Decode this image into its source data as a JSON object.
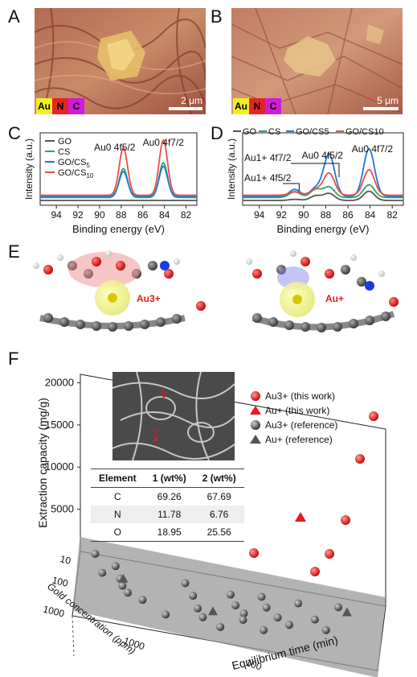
{
  "panels": {
    "A": "A",
    "B": "B",
    "C": "C",
    "D": "D",
    "E": "E",
    "F": "F"
  },
  "eds_legend": [
    "Au",
    "N",
    "C"
  ],
  "eds_colors": {
    "Au": "#f2ef21",
    "N": "#e62424",
    "C": "#d01bd8"
  },
  "scalebar_A": "2 μm",
  "scalebar_B": "5 μm",
  "xps": {
    "ylabel": "Intensity (a.u.)",
    "xlabel": "Binding energy (eV)",
    "xticks": [
      "94",
      "92",
      "90",
      "88",
      "86",
      "84",
      "82"
    ],
    "chart_C": {
      "type": "line",
      "legend": [
        "GO",
        "CS",
        "GO/CS5",
        "GO/CS10"
      ],
      "peak1": "Au0 4f5/2",
      "peak2": "Au0 4f7/2",
      "series": [
        {
          "name": "GO",
          "color": "#555555",
          "heights": [
            0.0,
            0.0
          ]
        },
        {
          "name": "CS",
          "color": "#2aa565",
          "heights": [
            0.5,
            0.6
          ]
        },
        {
          "name": "GO/CS5",
          "color": "#1f78d1",
          "heights": [
            0.43,
            0.52
          ]
        },
        {
          "name": "GO/CS10",
          "color": "#ef4b4b",
          "heights": [
            0.82,
            0.95
          ]
        }
      ],
      "peak_positions_eV": [
        87.8,
        84.1
      ]
    },
    "chart_D": {
      "type": "line",
      "legend": [
        "GO",
        "CS",
        "GO/CS5",
        "GO/CS10"
      ],
      "annotations": [
        "Au1+ 4f7/2",
        "Au1+ 4f5/2",
        "Au0 4f5/2",
        "Au0 4f7/2"
      ],
      "series": [
        {
          "name": "GO",
          "color": "#555555",
          "heights": [
            0.02,
            0.08,
            0.12,
            0.16
          ]
        },
        {
          "name": "CS",
          "color": "#2aa565",
          "heights": [
            0.1,
            0.14,
            0.18,
            0.22
          ]
        },
        {
          "name": "GO/CS5",
          "color": "#1f78d1",
          "heights": [
            0.12,
            0.14,
            0.72,
            0.82
          ]
        },
        {
          "name": "GO/CS10",
          "color": "#ef4b4b",
          "heights": [
            0.06,
            0.1,
            0.38,
            0.44
          ]
        }
      ],
      "peak_positions_eV": [
        90.8,
        88.9,
        87.7,
        84.1
      ]
    }
  },
  "molecules": {
    "left_label": "Au3+",
    "right_label": "Au+"
  },
  "chart_F": {
    "type": "scatter",
    "zlabel": "Extraction capacity (mg/g)",
    "xlabel": "Equilibrium time (min)",
    "ylabel": "Gold concentration (ppm)",
    "zticks": [
      "5000",
      "10000",
      "15000",
      "20000"
    ],
    "xticks": [
      "10",
      "100",
      "1000"
    ],
    "yticks": [
      "10",
      "100",
      "1000"
    ],
    "legend": [
      {
        "label": "Au3+ (this work)",
        "marker": "circle",
        "color": "#e31b1b"
      },
      {
        "label": "Au+ (this work)",
        "marker": "triangle",
        "color": "#e31b1b"
      },
      {
        "label": "Au3+ (reference)",
        "marker": "circle",
        "color": "#555555"
      },
      {
        "label": "Au+ (reference)",
        "marker": "triangle",
        "color": "#555555"
      }
    ],
    "table": {
      "headers": [
        "Element",
        "1 (wt%)",
        "2 (wt%)"
      ],
      "rows": [
        [
          "C",
          "69.26",
          "67.69"
        ],
        [
          "N",
          "11.78",
          "6.76"
        ],
        [
          "O",
          "18.95",
          "25.56"
        ]
      ]
    },
    "inset_markers": [
      "1",
      "2"
    ],
    "points_this_work_au3": [
      [
        100,
        700,
        2000
      ],
      [
        500,
        580,
        20000
      ],
      [
        450,
        620,
        13000
      ],
      [
        250,
        640,
        11000
      ],
      [
        170,
        655,
        7000
      ],
      [
        250,
        540,
        5000
      ],
      [
        320,
        520,
        3500
      ],
      [
        150,
        610,
        2500
      ]
    ],
    "points_this_work_au1": [
      [
        200,
        620,
        8000
      ]
    ]
  }
}
